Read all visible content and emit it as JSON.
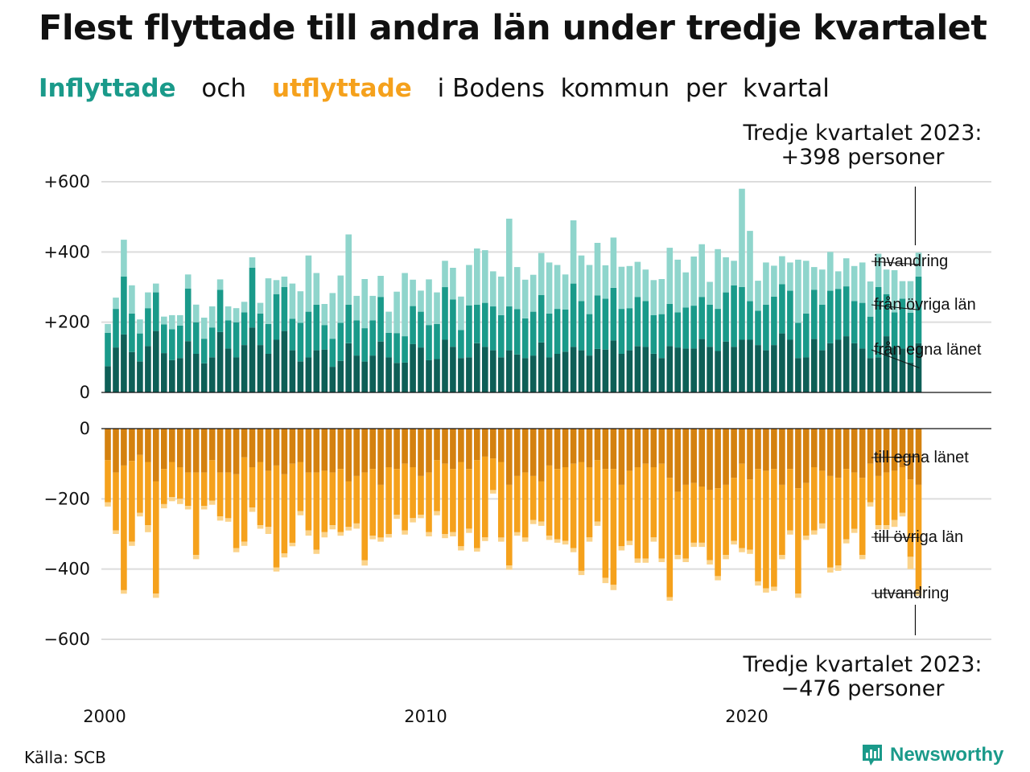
{
  "title": "Flest flyttade till andra län under tredje kvartalet",
  "subtitle": {
    "in_word": "Inflyttade",
    "and_word": "och",
    "out_word": "utflyttade",
    "rest": "i Bodens  kommun  per  kvartal"
  },
  "callout_top": {
    "line1": "Tredje kvartalet 2023:",
    "line2": "+398 personer"
  },
  "callout_bottom": {
    "line1": "Tredje kvartalet 2023:",
    "line2": "−476 personer"
  },
  "source": "Källa: SCB",
  "brand": "Newsworthy",
  "colors": {
    "in_local": "#0e5f57",
    "in_other": "#1a9a8a",
    "in_imm": "#8fd5cc",
    "out_local": "#d4810f",
    "out_other": "#f5a11c",
    "out_emi": "#fbd38a",
    "brand": "#1a9a8a"
  },
  "chart_data": {
    "type": "bar",
    "stacked": true,
    "grid": true,
    "x_start": 2000,
    "x_step_years": 0.25,
    "x_ticks": [
      {
        "value": 2000,
        "label": "2000"
      },
      {
        "value": 2010,
        "label": "2010"
      },
      {
        "value": 2020,
        "label": "2020"
      }
    ],
    "top": {
      "ylim": [
        0,
        600
      ],
      "y_ticks": [
        {
          "value": 0,
          "label": "0"
        },
        {
          "value": 200,
          "label": "+200"
        },
        {
          "value": 400,
          "label": "+400"
        },
        {
          "value": 600,
          "label": "+600"
        }
      ],
      "series": [
        {
          "name": "från egna länet",
          "values": [
            75,
            128,
            165,
            115,
            88,
            132,
            175,
            112,
            92,
            98,
            146,
            110,
            83,
            100,
            172,
            125,
            100,
            135,
            185,
            135,
            110,
            150,
            175,
            120,
            88,
            100,
            120,
            122,
            73,
            90,
            140,
            105,
            88,
            105,
            145,
            100,
            84,
            85,
            138,
            128,
            92,
            95,
            150,
            130,
            98,
            100,
            140,
            130,
            120,
            100,
            120,
            108,
            98,
            105,
            142,
            100,
            110,
            116,
            130,
            120,
            105,
            124,
            122,
            148,
            110,
            120,
            132,
            130,
            110,
            98,
            132,
            128,
            125,
            125,
            152,
            130,
            118,
            145,
            130,
            150,
            150,
            135,
            120,
            135,
            168,
            150,
            98,
            100,
            152,
            120,
            140,
            150,
            160,
            140,
            125,
            98,
            100,
            160,
            128,
            125,
            85,
            140
          ]
        },
        {
          "name": "från övriga län",
          "values": [
            95,
            110,
            165,
            110,
            80,
            108,
            110,
            82,
            88,
            92,
            150,
            90,
            70,
            85,
            120,
            80,
            100,
            93,
            170,
            90,
            85,
            130,
            125,
            90,
            110,
            130,
            130,
            70,
            80,
            108,
            110,
            100,
            95,
            100,
            127,
            70,
            85,
            75,
            108,
            102,
            100,
            100,
            150,
            135,
            80,
            148,
            110,
            125,
            125,
            120,
            125,
            129,
            113,
            125,
            135,
            125,
            128,
            120,
            180,
            140,
            118,
            152,
            145,
            150,
            128,
            120,
            140,
            130,
            110,
            125,
            120,
            100,
            117,
            122,
            120,
            120,
            120,
            140,
            175,
            150,
            110,
            98,
            130,
            138,
            140,
            140,
            100,
            125,
            140,
            130,
            150,
            145,
            142,
            120,
            130,
            118,
            200,
            120,
            100,
            142,
            142,
            190
          ]
        },
        {
          "name": "invandring",
          "values": [
            25,
            32,
            105,
            80,
            40,
            45,
            25,
            22,
            40,
            30,
            40,
            50,
            60,
            60,
            30,
            40,
            40,
            30,
            30,
            30,
            130,
            40,
            30,
            100,
            90,
            160,
            90,
            60,
            130,
            135,
            200,
            70,
            140,
            70,
            60,
            60,
            118,
            180,
            75,
            60,
            130,
            90,
            75,
            90,
            95,
            115,
            160,
            150,
            100,
            110,
            250,
            120,
            110,
            105,
            120,
            145,
            125,
            100,
            180,
            130,
            140,
            150,
            95,
            143,
            120,
            120,
            100,
            90,
            100,
            100,
            160,
            150,
            100,
            140,
            150,
            65,
            170,
            100,
            70,
            280,
            200,
            85,
            120,
            88,
            80,
            80,
            180,
            150,
            65,
            100,
            110,
            50,
            80,
            100,
            115,
            100,
            95,
            70,
            120,
            50,
            90,
            68
          ]
        }
      ]
    },
    "bottom": {
      "ylim": [
        -600,
        0
      ],
      "y_ticks": [
        {
          "value": 0,
          "label": "0"
        },
        {
          "value": -200,
          "label": "−200"
        },
        {
          "value": -400,
          "label": "−400"
        },
        {
          "value": -600,
          "label": "−600"
        }
      ],
      "series": [
        {
          "name": "till egna länet",
          "values": [
            90,
            125,
            105,
            92,
            75,
            95,
            150,
            115,
            95,
            110,
            125,
            125,
            125,
            90,
            125,
            125,
            130,
            82,
            110,
            95,
            120,
            105,
            130,
            100,
            95,
            125,
            125,
            120,
            125,
            115,
            150,
            135,
            125,
            115,
            160,
            110,
            115,
            100,
            110,
            135,
            125,
            90,
            100,
            115,
            95,
            115,
            90,
            80,
            85,
            95,
            160,
            135,
            125,
            135,
            150,
            105,
            115,
            110,
            100,
            95,
            110,
            90,
            115,
            115,
            160,
            120,
            110,
            100,
            110,
            100,
            140,
            180,
            160,
            155,
            165,
            175,
            170,
            160,
            140,
            100,
            145,
            115,
            120,
            115,
            160,
            115,
            170,
            155,
            110,
            120,
            135,
            140,
            115,
            125,
            140,
            100,
            135,
            125,
            120,
            110,
            145,
            160
          ]
        },
        {
          "name": "till övriga län",
          "values": [
            120,
            165,
            355,
            230,
            165,
            180,
            320,
            100,
            100,
            90,
            95,
            235,
            95,
            115,
            125,
            130,
            210,
            240,
            115,
            180,
            160,
            290,
            225,
            225,
            140,
            165,
            220,
            175,
            150,
            180,
            130,
            135,
            250,
            190,
            150,
            190,
            130,
            190,
            145,
            110,
            170,
            145,
            200,
            180,
            240,
            170,
            250,
            230,
            90,
            215,
            230,
            160,
            185,
            125,
            115,
            200,
            200,
            210,
            240,
            310,
            200,
            175,
            310,
            330,
            175,
            200,
            260,
            270,
            200,
            270,
            340,
            180,
            210,
            170,
            160,
            200,
            250,
            200,
            180,
            240,
            200,
            320,
            335,
            335,
            200,
            175,
            300,
            150,
            180,
            150,
            260,
            250,
            200,
            160,
            220,
            110,
            140,
            150,
            140,
            130,
            220,
            300
          ]
        },
        {
          "name": "utvandring",
          "values": [
            12,
            10,
            10,
            12,
            10,
            20,
            12,
            12,
            12,
            15,
            10,
            12,
            10,
            12,
            12,
            10,
            12,
            12,
            12,
            10,
            20,
            12,
            12,
            10,
            12,
            15,
            12,
            15,
            12,
            10,
            10,
            15,
            15,
            10,
            12,
            10,
            12,
            12,
            12,
            10,
            12,
            12,
            12,
            12,
            12,
            12,
            10,
            10,
            10,
            12,
            12,
            10,
            12,
            12,
            12,
            12,
            10,
            10,
            12,
            12,
            12,
            12,
            15,
            15,
            12,
            12,
            12,
            12,
            12,
            10,
            10,
            12,
            10,
            12,
            12,
            12,
            12,
            12,
            10,
            12,
            12,
            12,
            12,
            12,
            12,
            12,
            12,
            12,
            12,
            15,
            15,
            15,
            12,
            12,
            12,
            12,
            12,
            12,
            20,
            10,
            35,
            16
          ]
        }
      ]
    }
  }
}
